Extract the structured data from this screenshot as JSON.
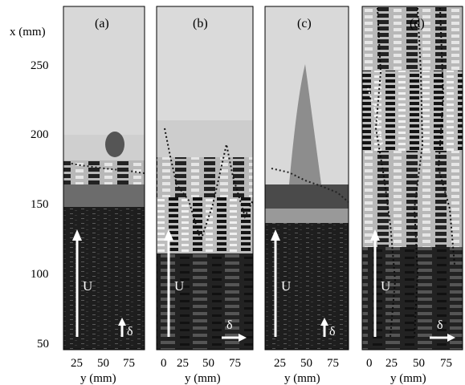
{
  "figure": {
    "y_axis_title": "x (mm)",
    "x_axis_title": "y (mm)",
    "y_ticks": [
      "250",
      "200",
      "150",
      "100",
      "50"
    ],
    "panels": [
      {
        "id": "a",
        "label": "(a)",
        "x_ticks": [
          "25",
          "50",
          "75"
        ],
        "flow_label": "U",
        "thickness_label": "δ",
        "thickness_arrow": "up",
        "shading": [
          "#d8d8d8",
          "#d3d3d3",
          "#c8c8c8",
          "#8a8a8a",
          "#1c1c1c",
          "#1a1a1a"
        ]
      },
      {
        "id": "b",
        "label": "(b)",
        "x_ticks": [
          "0",
          "25",
          "50",
          "75"
        ],
        "flow_label": "U",
        "thickness_label": "δ",
        "thickness_arrow": "right",
        "shading": [
          "#dadada",
          "#d6d6d6",
          "#c9c9c9",
          "#6e6e6e",
          "#555555",
          "#2a2a2a"
        ]
      },
      {
        "id": "c",
        "label": "(c)",
        "x_ticks": [
          "25",
          "50",
          "75"
        ],
        "flow_label": "U",
        "thickness_label": "δ",
        "thickness_arrow": "up",
        "shading": [
          "#d9d9d9",
          "#d4d4d4",
          "#cfcfcf",
          "#aaaaaa",
          "#444444",
          "#1a1a1a"
        ]
      },
      {
        "id": "d",
        "label": "(d)",
        "x_ticks": [
          "0",
          "25",
          "50",
          "75"
        ],
        "flow_label": "U",
        "thickness_label": "δ",
        "thickness_arrow": "right",
        "shading": [
          "#b5b5b5",
          "#9a9a9a",
          "#7a7a7a",
          "#5a5a5a",
          "#333333",
          "#2a2a2a"
        ]
      }
    ]
  }
}
